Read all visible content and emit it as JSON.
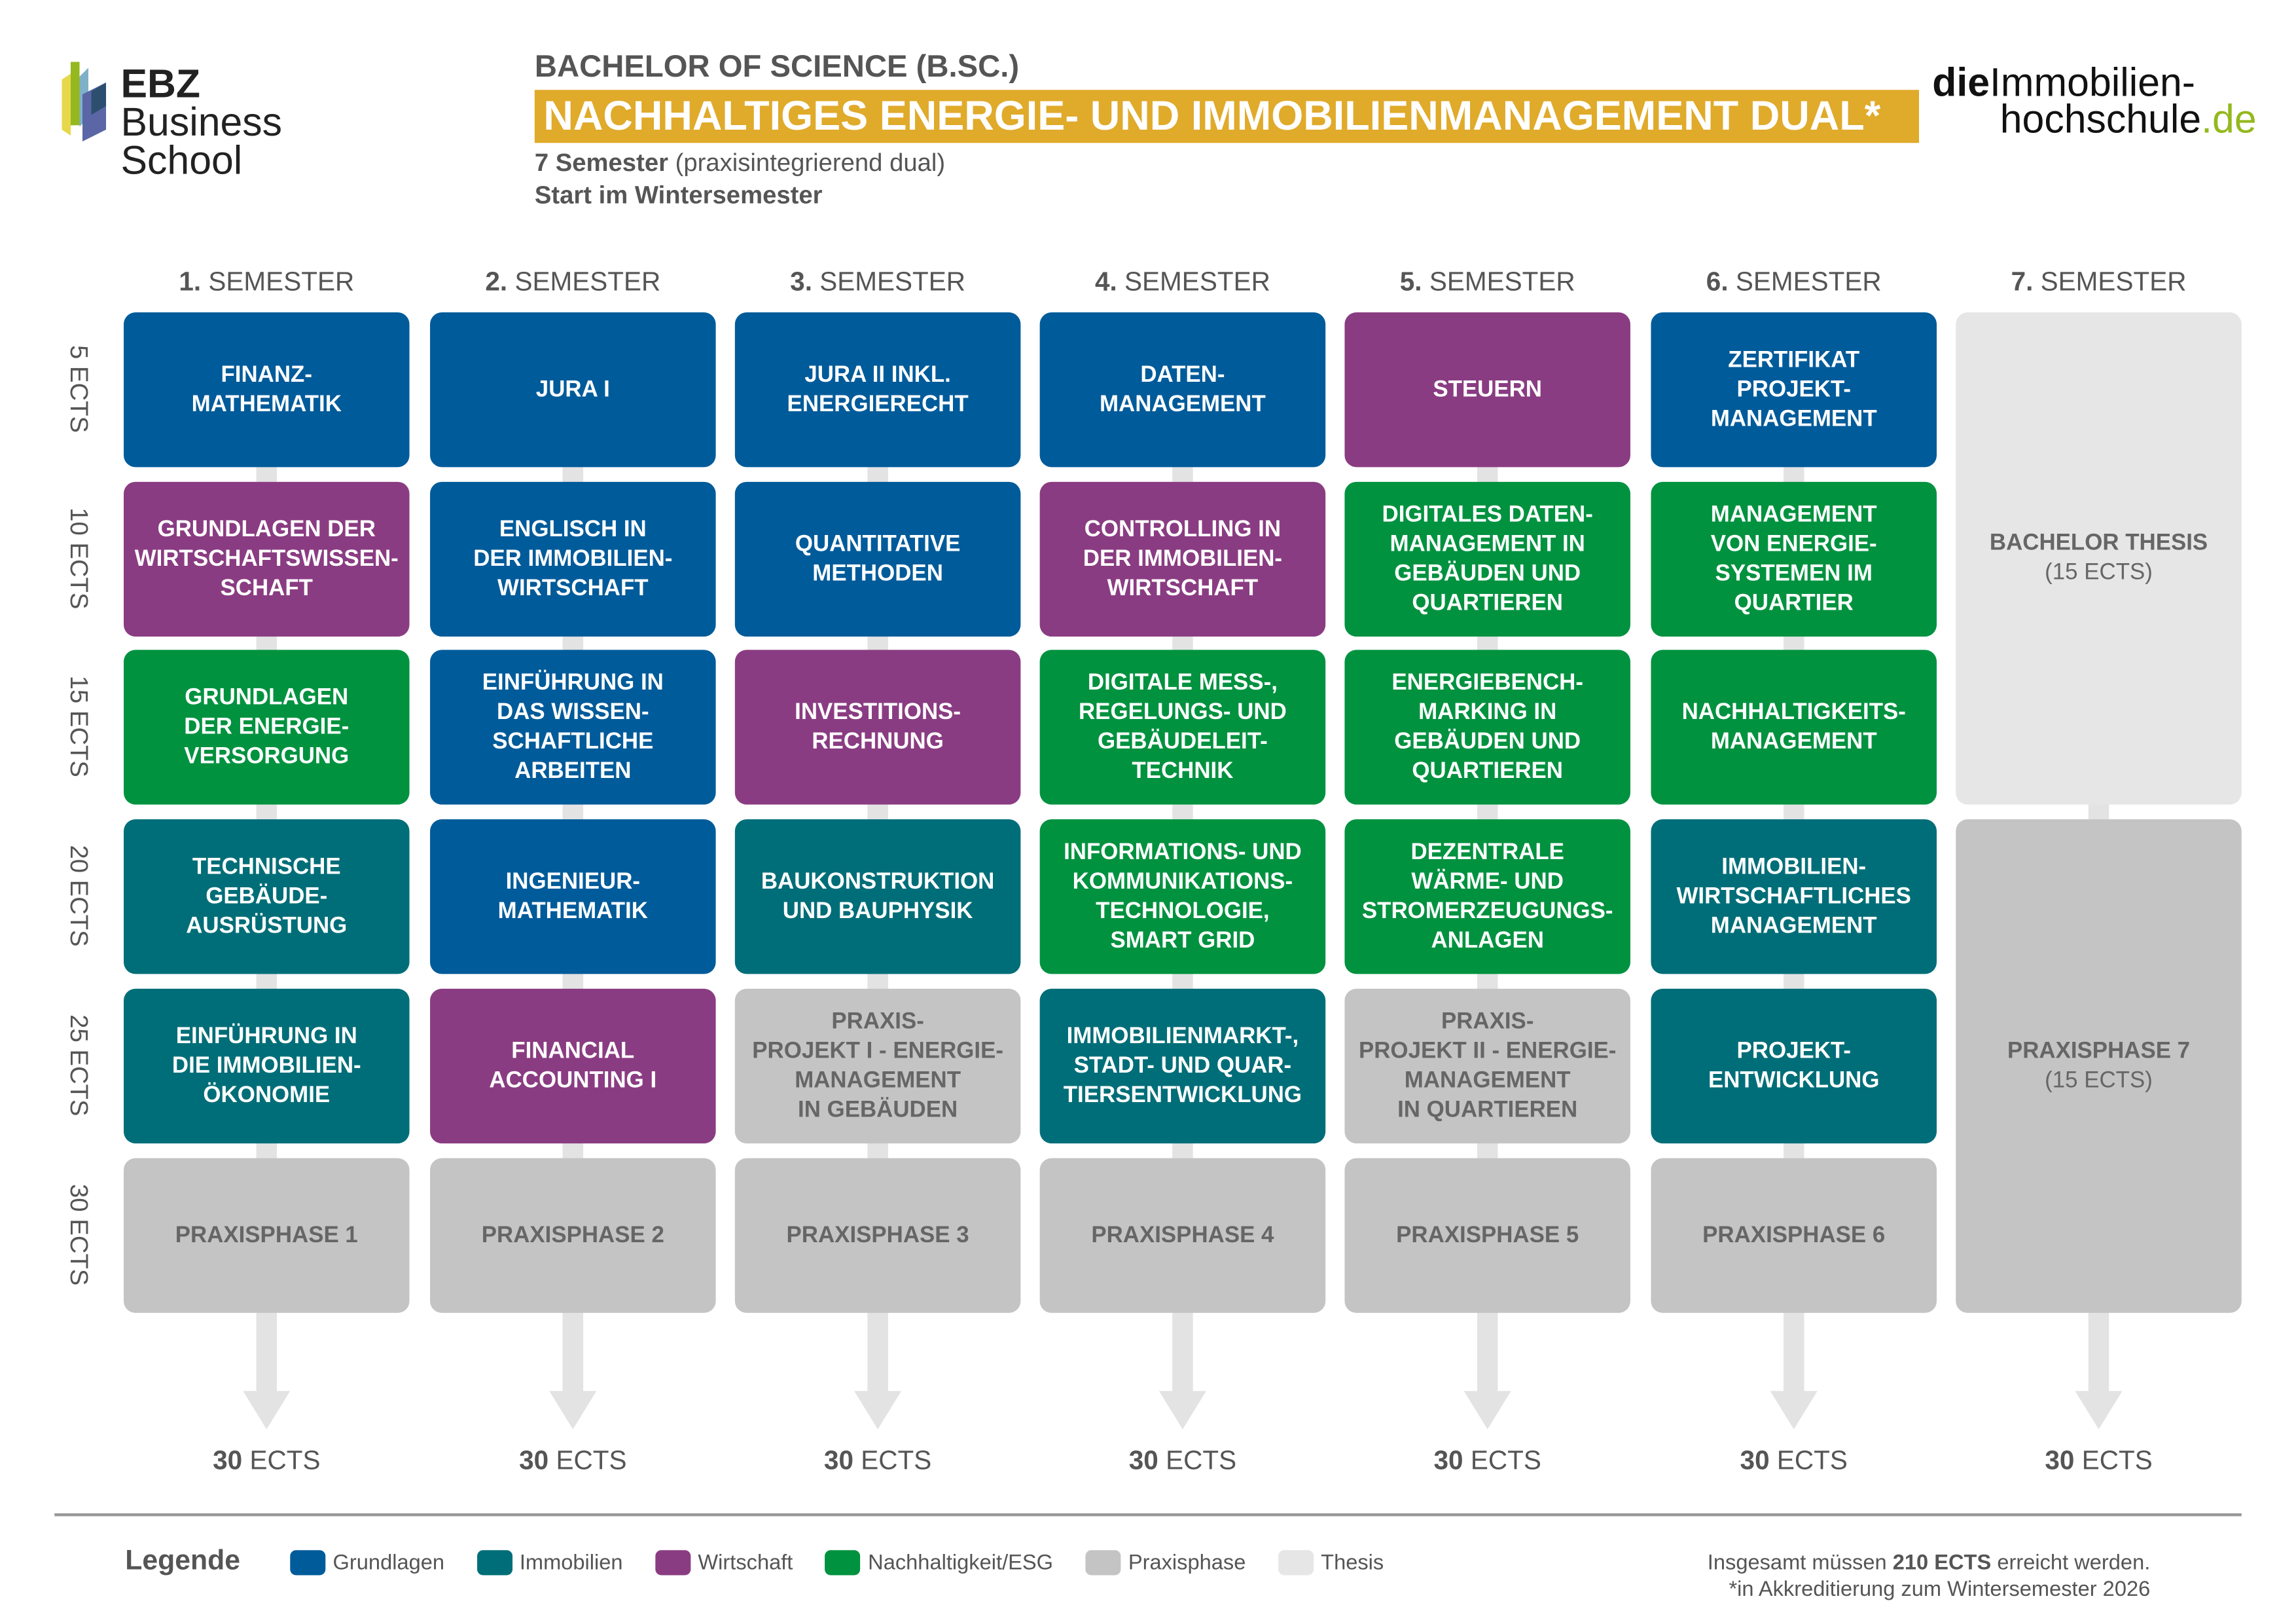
{
  "header": {
    "logo_left": {
      "bold": "EBZ",
      "rest": "Business",
      "line2": "School"
    },
    "logo_right": {
      "die": "die",
      "line1": "Immobilien-",
      "line2": "hochschule",
      "tld": ".de"
    },
    "degree": "BACHELOR OF SCIENCE (B.SC.)",
    "title": "NACHHALTIGES ENERGIE- UND IMMOBILIENMANAGEMENT DUAL*",
    "duration_bold": "7 Semester",
    "duration_rest": "(praxisintegrierend dual)",
    "start": "Start im Wintersemester"
  },
  "colors": {
    "title_bar": "#e0aa2a",
    "Grundlagen": "#005b9a",
    "Immobilien": "#006e78",
    "Wirtschaft": "#8a3c82",
    "Nachhaltigkeit": "#00923f",
    "Praxisphase": "#c4c4c4",
    "Thesis": "#e6e6e6"
  },
  "axis_labels": [
    "5 ECTS",
    "10 ECTS",
    "15 ECTS",
    "20 ECTS",
    "25 ECTS",
    "30 ECTS"
  ],
  "semesters": [
    {
      "num": "1.",
      "label": "SEMESTER",
      "total_num": "30",
      "total_unit": "ECTS",
      "modules": [
        {
          "label": "FINANZ-\nMATHEMATIK",
          "cat": "Grundlagen"
        },
        {
          "label": "GRUNDLAGEN DER\nWIRTSCHAFTSWISSEN-\nSCHAFT",
          "cat": "Wirtschaft"
        },
        {
          "label": "GRUNDLAGEN\nDER ENERGIE-\nVERSORGUNG",
          "cat": "Nachhaltigkeit"
        },
        {
          "label": "TECHNISCHE\nGEBÄUDE-\nAUSRÜSTUNG",
          "cat": "Immobilien"
        },
        {
          "label": "EINFÜHRUNG IN\nDIE IMMOBILIEN-\nÖKONOMIE",
          "cat": "Immobilien"
        },
        {
          "label": "PRAXISPHASE 1",
          "cat": "Praxisphase"
        }
      ]
    },
    {
      "num": "2.",
      "label": "SEMESTER",
      "total_num": "30",
      "total_unit": "ECTS",
      "modules": [
        {
          "label": "JURA I",
          "cat": "Grundlagen"
        },
        {
          "label": "ENGLISCH IN\nDER IMMOBILIEN-\nWIRTSCHAFT",
          "cat": "Grundlagen"
        },
        {
          "label": "EINFÜHRUNG IN\nDAS WISSEN-\nSCHAFTLICHE\nARBEITEN",
          "cat": "Grundlagen"
        },
        {
          "label": "INGENIEUR-\nMATHEMATIK",
          "cat": "Grundlagen"
        },
        {
          "label": "FINANCIAL\nACCOUNTING I",
          "cat": "Wirtschaft"
        },
        {
          "label": "PRAXISPHASE 2",
          "cat": "Praxisphase"
        }
      ]
    },
    {
      "num": "3.",
      "label": "SEMESTER",
      "total_num": "30",
      "total_unit": "ECTS",
      "modules": [
        {
          "label": "JURA II INKL.\nENERGIERECHT",
          "cat": "Grundlagen"
        },
        {
          "label": "QUANTITATIVE\nMETHODEN",
          "cat": "Grundlagen"
        },
        {
          "label": "INVESTITIONS-\nRECHNUNG",
          "cat": "Wirtschaft"
        },
        {
          "label": "BAUKONSTRUKTION\nUND BAUPHYSIK",
          "cat": "Immobilien"
        },
        {
          "label": "PRAXIS-\nPROJEKT I - ENERGIE-\nMANAGEMENT\nIN GEBÄUDEN",
          "cat": "Praxisphase"
        },
        {
          "label": "PRAXISPHASE 3",
          "cat": "Praxisphase"
        }
      ]
    },
    {
      "num": "4.",
      "label": "SEMESTER",
      "total_num": "30",
      "total_unit": "ECTS",
      "modules": [
        {
          "label": "DATEN-\nMANAGEMENT",
          "cat": "Grundlagen"
        },
        {
          "label": "CONTROLLING IN\nDER IMMOBILIEN-\nWIRTSCHAFT",
          "cat": "Wirtschaft"
        },
        {
          "label": "DIGITALE MESS-,\nREGELUNGS- UND\nGEBÄUDELEIT-\nTECHNIK",
          "cat": "Nachhaltigkeit"
        },
        {
          "label": "INFORMATIONS- UND\nKOMMUNIKATIONS-\nTECHNOLOGIE,\nSMART GRID",
          "cat": "Nachhaltigkeit"
        },
        {
          "label": "IMMOBILIENMARKT-,\nSTADT- UND QUAR-\nTIERSENTWICKLUNG",
          "cat": "Immobilien"
        },
        {
          "label": "PRAXISPHASE 4",
          "cat": "Praxisphase"
        }
      ]
    },
    {
      "num": "5.",
      "label": "SEMESTER",
      "total_num": "30",
      "total_unit": "ECTS",
      "modules": [
        {
          "label": "STEUERN",
          "cat": "Wirtschaft"
        },
        {
          "label": "DIGITALES DATEN-\nMANAGEMENT IN\nGEBÄUDEN UND\nQUARTIEREN",
          "cat": "Nachhaltigkeit"
        },
        {
          "label": "ENERGIEBENCH-\nMARKING IN\nGEBÄUDEN UND\nQUARTIEREN",
          "cat": "Nachhaltigkeit"
        },
        {
          "label": "DEZENTRALE\nWÄRME- UND\nSTROMERZEUGUNGS-\nANLAGEN",
          "cat": "Nachhaltigkeit"
        },
        {
          "label": "PRAXIS-\nPROJEKT II - ENERGIE-\nMANAGEMENT\nIN QUARTIEREN",
          "cat": "Praxisphase"
        },
        {
          "label": "PRAXISPHASE 5",
          "cat": "Praxisphase"
        }
      ]
    },
    {
      "num": "6.",
      "label": "SEMESTER",
      "total_num": "30",
      "total_unit": "ECTS",
      "modules": [
        {
          "label": "ZERTIFIKAT\nPROJEKT-\nMANAGEMENT",
          "cat": "Grundlagen"
        },
        {
          "label": "MANAGEMENT\nVON ENERGIE-\nSYSTEMEN IM\nQUARTIER",
          "cat": "Nachhaltigkeit"
        },
        {
          "label": "NACHHALTIGKEITS-\nMANAGEMENT",
          "cat": "Nachhaltigkeit"
        },
        {
          "label": "IMMOBILIEN-\nWIRTSCHAFTLICHES\nMANAGEMENT",
          "cat": "Immobilien"
        },
        {
          "label": "PROJEKT-\nENTWICKLUNG",
          "cat": "Immobilien"
        },
        {
          "label": "PRAXISPHASE 6",
          "cat": "Praxisphase"
        }
      ]
    },
    {
      "num": "7.",
      "label": "SEMESTER",
      "total_num": "30",
      "total_unit": "ECTS",
      "modules": [
        {
          "label": "BACHELOR THESIS",
          "sub": "(15 ECTS)",
          "cat": "Thesis",
          "span": 3
        },
        {
          "label": "PRAXISPHASE 7",
          "sub": "(15 ECTS)",
          "cat": "Praxisphase",
          "span": 3
        }
      ]
    }
  ],
  "legend": {
    "title": "Legende",
    "items": [
      {
        "key": "Grundlagen",
        "label": "Grundlagen"
      },
      {
        "key": "Immobilien",
        "label": "Immobilien"
      },
      {
        "key": "Wirtschaft",
        "label": "Wirtschaft"
      },
      {
        "key": "Nachhaltigkeit",
        "label": "Nachhaltigkeit/ESG"
      },
      {
        "key": "Praxisphase",
        "label": "Praxisphase"
      },
      {
        "key": "Thesis",
        "label": "Thesis"
      }
    ]
  },
  "notes": {
    "total_pre": "Insgesamt müssen",
    "total_bold": "210 ECTS",
    "total_post": "erreicht werden.",
    "accreditation": "*in Akkreditierung zum Wintersemester 2026"
  }
}
